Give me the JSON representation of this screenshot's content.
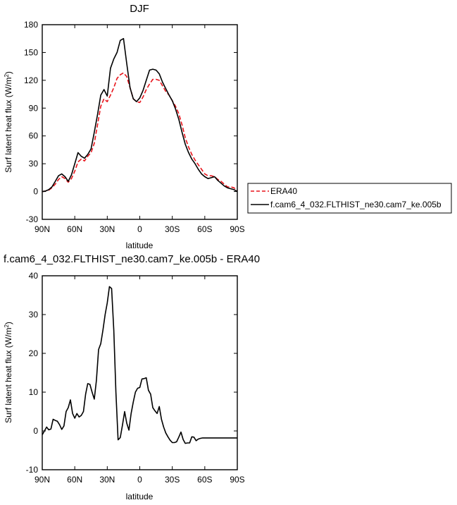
{
  "chart_data": [
    {
      "type": "line",
      "title": "DJF",
      "xlabel": "latitude",
      "ylabel": "Surf latent heat flux (W/m",
      "ylabel_sup": "2",
      "ylabel_close": ")",
      "xlim": [
        90,
        -90
      ],
      "ylim": [
        -30,
        180
      ],
      "x_ticks": [
        90,
        60,
        30,
        0,
        -30,
        -60,
        -90
      ],
      "x_tick_labels": [
        "90N",
        "60N",
        "30N",
        "0",
        "30S",
        "60S",
        "90S"
      ],
      "y_ticks": [
        -30,
        0,
        30,
        60,
        90,
        120,
        150,
        180
      ],
      "y_tick_labels": [
        "-30",
        "0",
        "30",
        "60",
        "90",
        "120",
        "150",
        "180"
      ],
      "legend": "right-outside",
      "series": [
        {
          "name": "ERA40",
          "color": "#e8141b",
          "dash": "dashed",
          "x": [
            90,
            87,
            84,
            81,
            78,
            75,
            72,
            69,
            66,
            63,
            60,
            57,
            54,
            51,
            48,
            45,
            42,
            39,
            36,
            33,
            30,
            27,
            24,
            21,
            18,
            15,
            12,
            9,
            6,
            3,
            0,
            -3,
            -6,
            -9,
            -12,
            -15,
            -18,
            -21,
            -24,
            -27,
            -30,
            -33,
            -36,
            -39,
            -42,
            -45,
            -48,
            -51,
            -54,
            -57,
            -60,
            -63,
            -66,
            -69,
            -72,
            -75,
            -78,
            -81,
            -84,
            -87,
            -90
          ],
          "values": [
            0,
            0.5,
            1.5,
            4,
            8,
            13,
            16,
            14,
            10,
            14,
            22,
            32,
            35,
            33,
            38,
            42,
            52,
            72,
            92,
            100,
            97,
            104,
            112,
            122,
            126,
            128,
            124,
            112,
            100,
            97,
            96,
            102,
            110,
            116,
            121,
            121,
            120,
            114,
            108,
            104,
            98,
            92,
            84,
            72,
            58,
            48,
            40,
            34,
            29,
            24,
            19,
            17,
            17,
            16,
            13,
            11,
            8,
            5,
            5,
            4,
            1
          ]
        },
        {
          "name": "f.cam6_4_032.FLTHIST_ne30.cam7_ke.005b",
          "color": "#000000",
          "dash": "solid",
          "x": [
            90,
            87,
            84,
            81,
            78,
            75,
            72,
            69,
            66,
            63,
            60,
            57,
            54,
            51,
            48,
            45,
            42,
            39,
            36,
            33,
            30,
            27,
            24,
            21,
            18,
            15,
            12,
            9,
            6,
            3,
            0,
            -3,
            -6,
            -9,
            -12,
            -15,
            -18,
            -21,
            -24,
            -27,
            -30,
            -33,
            -36,
            -39,
            -42,
            -45,
            -48,
            -51,
            -54,
            -57,
            -60,
            -63,
            -66,
            -69,
            -72,
            -75,
            -78,
            -81,
            -84,
            -87,
            -90
          ],
          "values": [
            0,
            0.5,
            2,
            5,
            11,
            17,
            19,
            16,
            11,
            18,
            30,
            42,
            38,
            36,
            40,
            46,
            64,
            83,
            104,
            110,
            103,
            133,
            143,
            150,
            163,
            165,
            138,
            112,
            100,
            97,
            101,
            109,
            120,
            131,
            132,
            131,
            127,
            118,
            111,
            104,
            98,
            89,
            78,
            64,
            51,
            42,
            35,
            30,
            24,
            19,
            16,
            14,
            15,
            16,
            12,
            9,
            6,
            4,
            3,
            2,
            0
          ]
        }
      ]
    },
    {
      "type": "line",
      "title": "f.cam6_4_032.FLTHIST_ne30.cam7_ke.005b - ERA40",
      "xlabel": "latitude",
      "ylabel": "Surf latent heat flux (W/m",
      "ylabel_sup": "2",
      "ylabel_close": ")",
      "xlim": [
        90,
        -90
      ],
      "ylim": [
        -10,
        40
      ],
      "x_ticks": [
        90,
        60,
        30,
        0,
        -30,
        -60,
        -90
      ],
      "x_tick_labels": [
        "90N",
        "60N",
        "30N",
        "0",
        "30S",
        "60S",
        "90S"
      ],
      "y_ticks": [
        -10,
        0,
        10,
        20,
        30,
        40
      ],
      "y_tick_labels": [
        "-10",
        "0",
        "10",
        "20",
        "30",
        "40"
      ],
      "series": [
        {
          "color": "#000000",
          "dash": "solid",
          "x": [
            90,
            88,
            86,
            84,
            82,
            80,
            78,
            76,
            74,
            72,
            70,
            68,
            66,
            64,
            62,
            60,
            58,
            56,
            54,
            52,
            50,
            48,
            46,
            44,
            42,
            40,
            38,
            36,
            34,
            32,
            30,
            28,
            26,
            24,
            22,
            20,
            18,
            16,
            14,
            12,
            10,
            8,
            6,
            4,
            2,
            0,
            -2,
            -4,
            -6,
            -8,
            -10,
            -12,
            -14,
            -16,
            -18,
            -20,
            -22,
            -24,
            -26,
            -28,
            -30,
            -32,
            -34,
            -36,
            -38,
            -40,
            -42,
            -44,
            -46,
            -48,
            -50,
            -52,
            -54,
            -56,
            -58,
            -60,
            -62,
            -64,
            -66,
            -68,
            -70,
            -72,
            -74,
            -76,
            -78,
            -80,
            -82,
            -84,
            -86,
            -88,
            -90
          ],
          "values": [
            -1,
            0,
            1,
            0.3,
            0.5,
            3,
            2.7,
            2.5,
            1.6,
            0.4,
            1.3,
            5,
            6,
            8,
            4.5,
            3.3,
            4.5,
            3.6,
            4,
            5,
            9.5,
            12.2,
            12,
            10,
            8.2,
            13,
            21,
            22.5,
            26,
            30,
            33,
            37.2,
            36.7,
            26,
            10,
            -2.3,
            -1.7,
            1.5,
            5,
            2,
            0.2,
            4.5,
            7.5,
            10,
            11,
            11.2,
            13.4,
            13.5,
            13.7,
            10.5,
            9.5,
            6,
            5.2,
            4.5,
            6.3,
            3,
            1,
            -0.5,
            -1.5,
            -2.4,
            -3,
            -3,
            -2.8,
            -1.6,
            -0.3,
            -2.2,
            -3.2,
            -3.1,
            -3.1,
            -1.5,
            -1.6,
            -2.5,
            -2.1,
            -1.9,
            -1.8,
            -1.8,
            -1.8,
            -1.8,
            -1.8,
            -1.8,
            -1.8,
            -1.8,
            -1.8,
            -1.8,
            -1.8,
            -1.8,
            -1.8,
            -1.8,
            -1.8,
            -1.8,
            -1.8
          ]
        }
      ]
    }
  ]
}
